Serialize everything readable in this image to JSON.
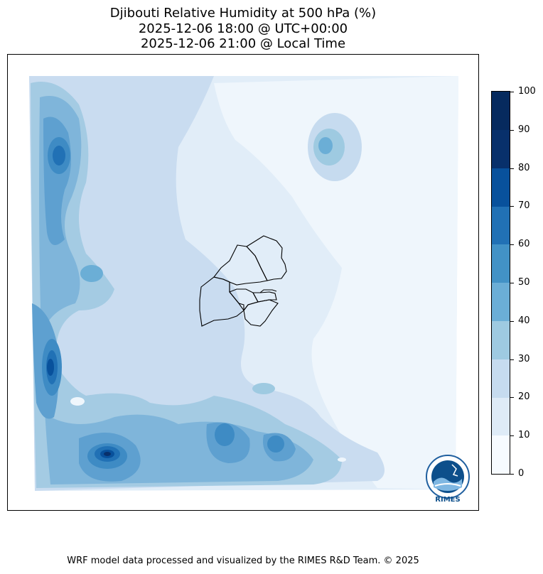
{
  "title": {
    "line1": "Djibouti Relative Humidity at 500 hPa (%)",
    "line2": "2025-12-06 18:00 @ UTC+00:00",
    "line3": "2025-12-06 21:00 @ Local Time"
  },
  "map": {
    "variable": "Relative Humidity",
    "level": "500 hPa",
    "unit": "%",
    "region": "Djibouti"
  },
  "colorbar": {
    "ticks": [
      "0",
      "10",
      "20",
      "30",
      "40",
      "50",
      "60",
      "70",
      "80",
      "90",
      "100"
    ],
    "colors": [
      "#f7fbff",
      "#deebf7",
      "#c6dbef",
      "#9ecae1",
      "#6baed6",
      "#4292c6",
      "#2171b5",
      "#08519c",
      "#08306b",
      "#062a5e"
    ]
  },
  "logo": {
    "text": "RIMES",
    "icon": "rimes-logo-icon"
  },
  "footer": {
    "text": "WRF model data processed and visualized by the RIMES R&D Team. © 2025"
  }
}
